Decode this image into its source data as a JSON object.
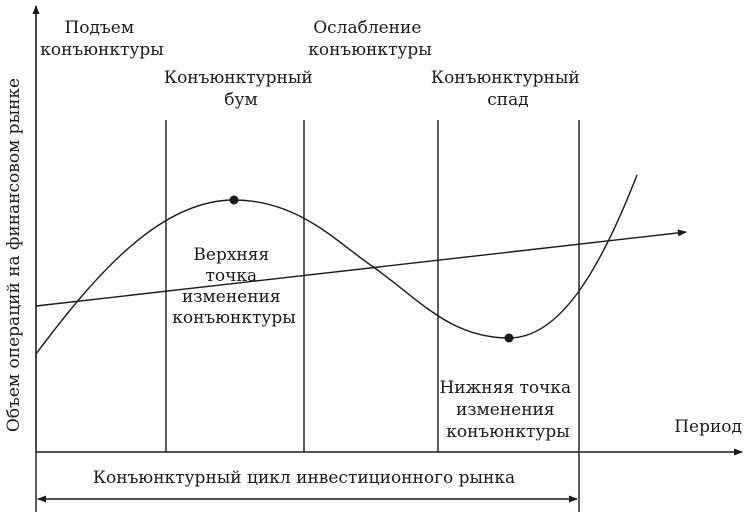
{
  "labels": {
    "phase_rise": [
      "Подъем",
      "конъюнктуры"
    ],
    "phase_boom": [
      "Конъюнктурный",
      "бум"
    ],
    "phase_weakening": [
      "Ослабление",
      "конъюнктуры"
    ],
    "phase_recession": [
      "Конъюнктурный",
      "спад"
    ],
    "upper_turning_point": [
      "Верхняя",
      "точка",
      "изменения",
      "конъюнктуры"
    ],
    "lower_turning_point": [
      "Нижняя точка",
      "изменения",
      "конъюнктуры"
    ],
    "y_axis": "Объем операций на финансовом рынке",
    "x_axis": "Период",
    "cycle": "Конъюнктурный цикл инвестиционного рынка"
  }
}
